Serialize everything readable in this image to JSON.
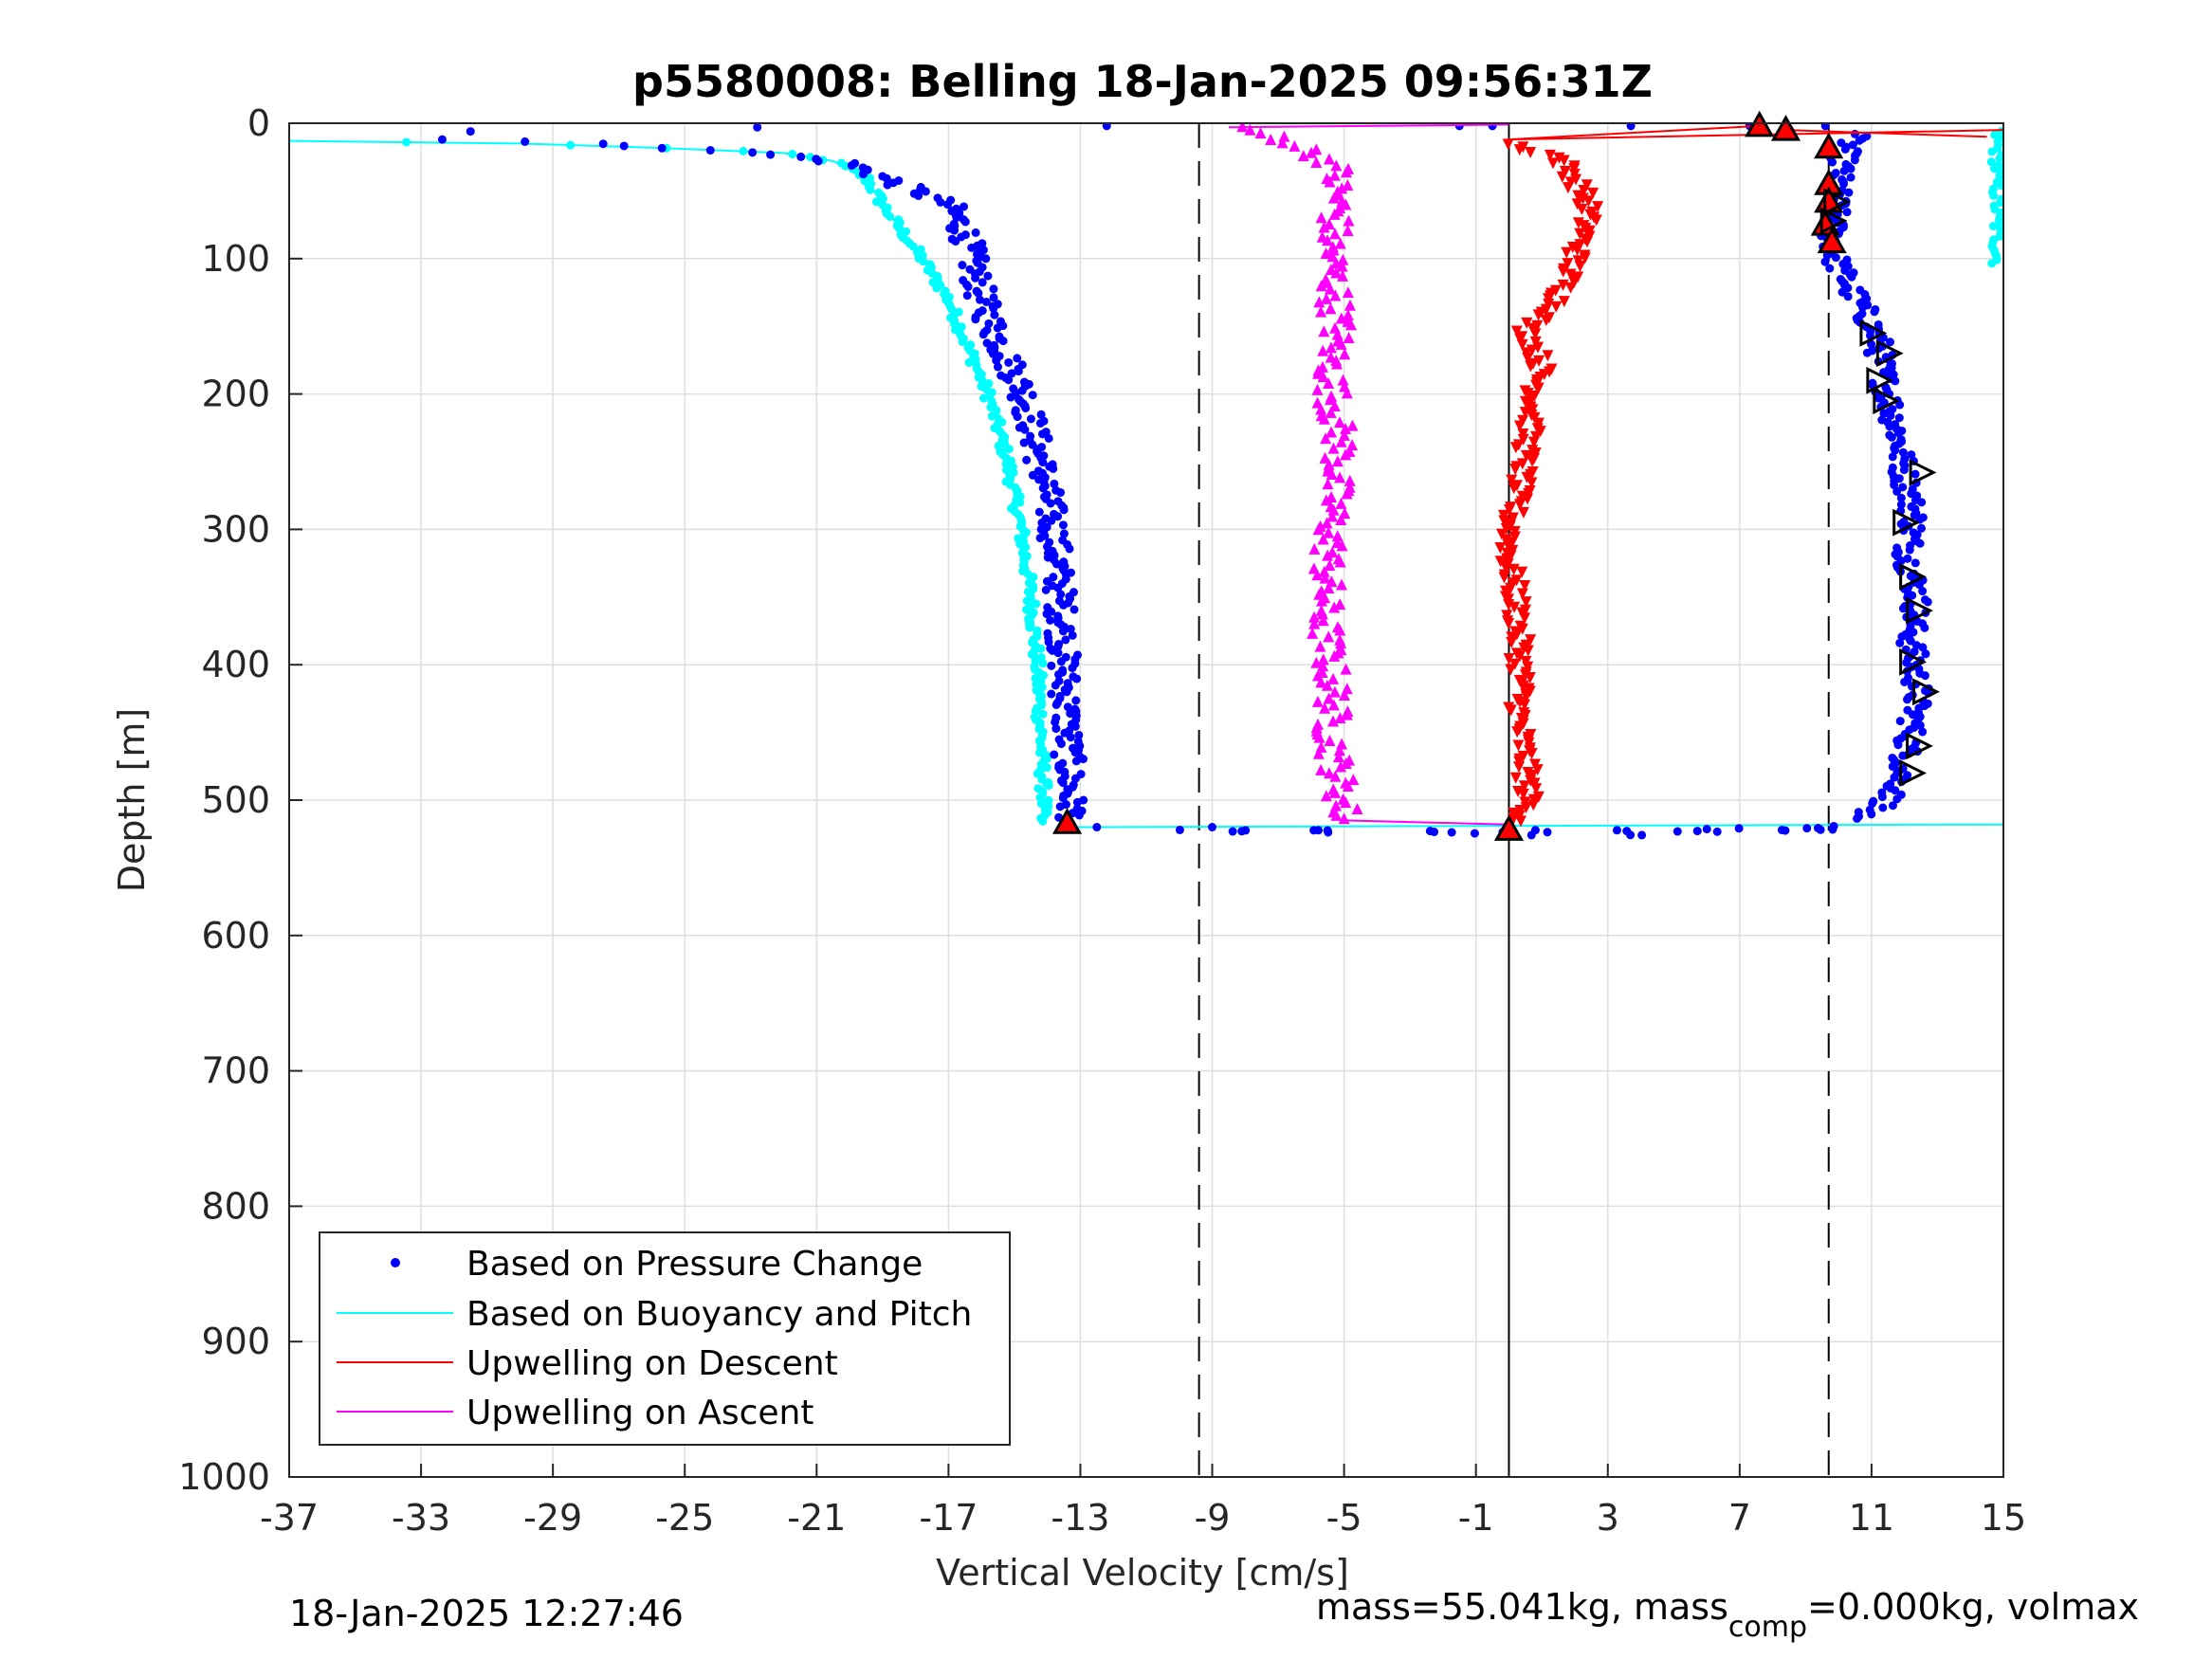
{
  "chart_data": {
    "type": "scatter",
    "title": "p5580008: Belling 18-Jan-2025 09:56:31Z",
    "xlabel": "Vertical Velocity [cm/s]",
    "ylabel": "Depth [m]",
    "xlim": [
      -37,
      15
    ],
    "ylim": [
      0,
      1000
    ],
    "y_reversed": true,
    "grid": true,
    "xticks": [
      "-37",
      "-33",
      "-29",
      "-25",
      "-21",
      "-17",
      "-13",
      "-9",
      "-5",
      "-1",
      "3",
      "7",
      "11",
      "15"
    ],
    "yticks": [
      "0",
      "100",
      "200",
      "300",
      "400",
      "500",
      "600",
      "700",
      "800",
      "900",
      "1000"
    ],
    "vertical_lines": [
      {
        "x": -9.4,
        "style": "dashed"
      },
      {
        "x": 9.7,
        "style": "dashed"
      },
      {
        "x": 0.0,
        "style": "solid"
      }
    ],
    "legend": {
      "placement": "bottom-left",
      "entries": [
        {
          "label": "Based on Pressure Change",
          "color": "#0000ff",
          "marker": "dot"
        },
        {
          "label": "Based on Buoyancy and Pitch",
          "color": "#00ffff",
          "marker": "line"
        },
        {
          "label": "Upwelling on Descent",
          "color": "#ff0000",
          "marker": "line"
        },
        {
          "label": "Upwelling on Ascent",
          "color": "#ff00ff",
          "marker": "line"
        }
      ]
    },
    "series": [
      {
        "name": "Based on Pressure Change",
        "color": "#0000ff",
        "descent": {
          "depth": [
            10,
            15,
            20,
            25,
            30,
            40,
            60,
            80,
            100,
            130,
            160,
            200,
            250,
            300,
            350,
            400,
            450,
            500,
            515
          ],
          "velocity": [
            -35,
            -28,
            -24,
            -21.5,
            -20,
            -19,
            -17,
            -16.5,
            -16.3,
            -16,
            -15.5,
            -14.7,
            -14.2,
            -13.8,
            -13.6,
            -13.5,
            -13.4,
            -13.3,
            -13.2
          ]
        },
        "ascent": {
          "depth": [
            515,
            505,
            490,
            470,
            450,
            420,
            400,
            380,
            350,
            320,
            290,
            260,
            230,
            200,
            180,
            160,
            140,
            120,
            100,
            80,
            60,
            40,
            20,
            8
          ],
          "velocity": [
            10,
            11.3,
            11.8,
            12.0,
            12.2,
            12.4,
            12.3,
            12.2,
            12.4,
            12.1,
            12.3,
            12.0,
            11.8,
            11.5,
            11.3,
            11.2,
            10.8,
            10.3,
            9.9,
            9.8,
            9.9,
            10.0,
            10.2,
            10.5
          ]
        },
        "turnaround": {
          "depth": [
            522,
            522,
            523,
            524,
            524,
            523,
            522,
            521
          ],
          "velocity": [
            -9,
            -5,
            -2,
            0.5,
            3,
            6,
            8,
            9.5
          ]
        }
      },
      {
        "name": "Based on Buoyancy and Pitch",
        "color": "#00ffff",
        "descent": {
          "depth": [
            13,
            15,
            18,
            22,
            28,
            40,
            60,
            80,
            100,
            130,
            160,
            200,
            250,
            300,
            350,
            400,
            450,
            500,
            515
          ],
          "velocity": [
            -37,
            -30,
            -26,
            -22,
            -20.5,
            -19.5,
            -19,
            -18.4,
            -17.8,
            -17,
            -16.5,
            -15.8,
            -15.2,
            -14.8,
            -14.5,
            -14.3,
            -14.2,
            -14.1,
            -14.2
          ]
        },
        "ascent": {
          "depth": [
            8,
            15,
            30,
            60,
            90,
            105
          ],
          "velocity": [
            15,
            15,
            15,
            15,
            14.8,
            15
          ]
        },
        "bottom_line": {
          "depth": [
            520,
            518
          ],
          "velocity": [
            -13.7,
            15
          ]
        }
      },
      {
        "name": "Upwelling on Descent",
        "color": "#ff0000",
        "depth": [
          15,
          25,
          40,
          60,
          80,
          100,
          120,
          140,
          150,
          160,
          180,
          200,
          230,
          260,
          290,
          320,
          350,
          380,
          410,
          440,
          470,
          500,
          515
        ],
        "velocity": [
          0,
          1.5,
          2.0,
          2.4,
          2.3,
          2.0,
          1.7,
          1.3,
          0.5,
          0.7,
          1.0,
          0.8,
          0.6,
          0.4,
          0.1,
          0.0,
          0.2,
          0.3,
          0.4,
          0.3,
          0.5,
          0.6,
          0.4
        ]
      },
      {
        "name": "Upwelling on Ascent",
        "color": "#ff00ff",
        "depth": [
          3,
          10,
          30,
          60,
          90,
          120,
          150,
          180,
          210,
          240,
          270,
          300,
          330,
          360,
          390,
          420,
          450,
          480,
          510,
          515
        ],
        "velocity": [
          -8.5,
          -7,
          -5.3,
          -5.2,
          -5.4,
          -5.3,
          -5.2,
          -5.4,
          -5.3,
          -5.1,
          -5.3,
          -5.4,
          -5.5,
          -5.6,
          -5.5,
          -5.3,
          -5.4,
          -5.2,
          -5.0,
          -0.5
        ]
      }
    ],
    "markers": [
      {
        "kind": "red-triangle",
        "points": [
          [
            -13.4,
            517
          ],
          [
            7.6,
            2
          ],
          [
            8.4,
            5
          ],
          [
            9.7,
            18
          ],
          [
            9.7,
            45
          ],
          [
            9.7,
            58
          ],
          [
            9.6,
            75
          ],
          [
            9.8,
            88
          ],
          [
            0.0,
            522
          ]
        ]
      },
      {
        "kind": "open-triangle-right",
        "points": [
          [
            11.0,
            155
          ],
          [
            11.5,
            170
          ],
          [
            11.2,
            190
          ],
          [
            11.4,
            205
          ],
          [
            12.5,
            258
          ],
          [
            12.0,
            295
          ],
          [
            12.2,
            335
          ],
          [
            12.4,
            360
          ],
          [
            12.2,
            398
          ],
          [
            12.6,
            420
          ],
          [
            12.4,
            460
          ],
          [
            12.2,
            480
          ],
          [
            9.9,
            58
          ],
          [
            9.8,
            72
          ]
        ]
      }
    ]
  },
  "footer": {
    "timestamp": "18-Jan-2025 12:27:46",
    "mass_text_a": "mass=55.041kg, mass",
    "mass_sub": "comp",
    "mass_text_b": "=0.000kg, volmax"
  }
}
